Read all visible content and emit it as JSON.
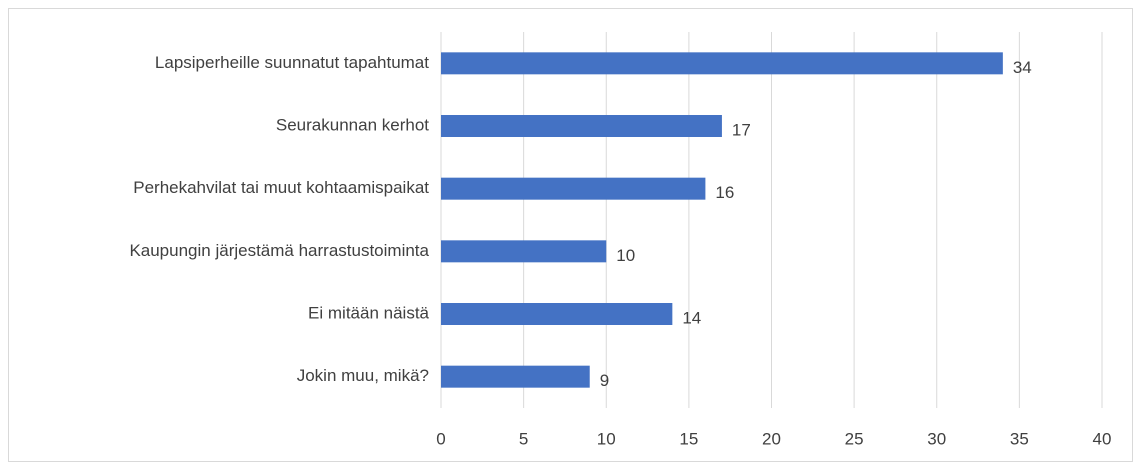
{
  "chart_data": {
    "type": "bar",
    "orientation": "horizontal",
    "categories": [
      "Lapsiperheille suunnatut tapahtumat",
      "Seurakunnan kerhot",
      "Perhekahvilat tai muut kohtaamispaikat",
      "Kaupungin järjestämä harrastustoiminta",
      "Ei mitään näistä",
      "Jokin muu, mikä?"
    ],
    "values": [
      34,
      17,
      16,
      10,
      14,
      9
    ],
    "color": "#4472c4",
    "xlim": [
      0,
      40
    ],
    "xticks": [
      0,
      5,
      10,
      15,
      20,
      25,
      30,
      35,
      40
    ],
    "grid": true
  }
}
